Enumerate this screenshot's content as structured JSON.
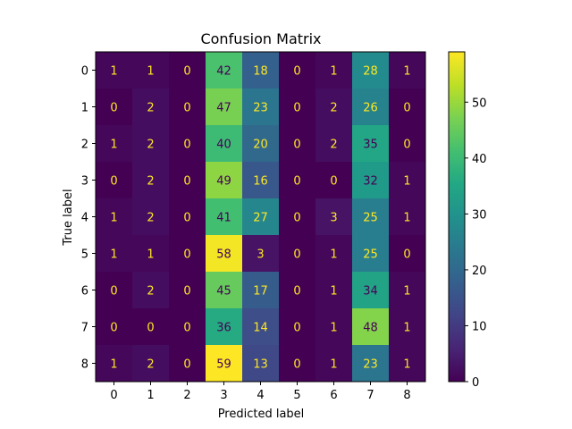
{
  "chart_data": {
    "type": "heatmap",
    "title": "Confusion Matrix",
    "xlabel": "Predicted label",
    "ylabel": "True label",
    "x_categories": [
      "0",
      "1",
      "2",
      "3",
      "4",
      "5",
      "6",
      "7",
      "8"
    ],
    "y_categories": [
      "0",
      "1",
      "2",
      "3",
      "4",
      "5",
      "6",
      "7",
      "8"
    ],
    "matrix": [
      [
        1,
        1,
        0,
        42,
        18,
        0,
        1,
        28,
        1
      ],
      [
        0,
        2,
        0,
        47,
        23,
        0,
        2,
        26,
        0
      ],
      [
        1,
        2,
        0,
        40,
        20,
        0,
        2,
        35,
        0
      ],
      [
        0,
        2,
        0,
        49,
        16,
        0,
        0,
        32,
        1
      ],
      [
        1,
        2,
        0,
        41,
        27,
        0,
        3,
        25,
        1
      ],
      [
        1,
        1,
        0,
        58,
        3,
        0,
        1,
        25,
        0
      ],
      [
        0,
        2,
        0,
        45,
        17,
        0,
        1,
        34,
        1
      ],
      [
        0,
        0,
        0,
        36,
        14,
        0,
        1,
        48,
        1
      ],
      [
        1,
        2,
        0,
        59,
        13,
        0,
        1,
        23,
        1
      ]
    ],
    "colormap": "viridis",
    "colorbar": {
      "range": [
        0,
        59
      ],
      "ticks": [
        0,
        10,
        20,
        30,
        40,
        50
      ]
    },
    "text_colors": {
      "on_dark": "#fde725",
      "on_light": "#440154"
    }
  }
}
